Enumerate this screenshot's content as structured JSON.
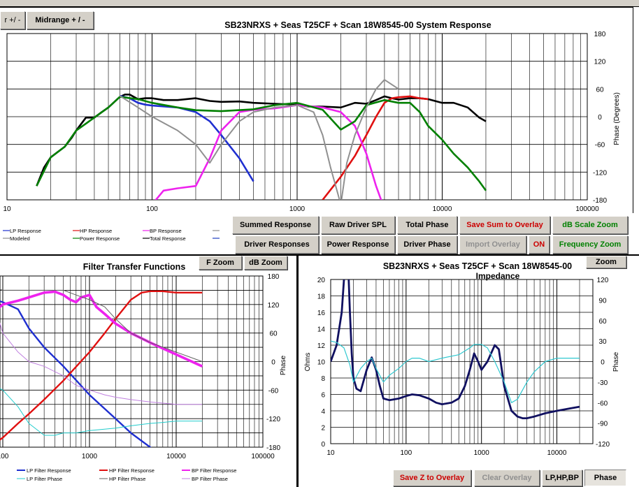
{
  "top_tabs": {
    "woofer_tab": "r +/ -",
    "midrange_tab": "Midrange  + / -"
  },
  "system_chart": {
    "title": "SB23NRXS  + Seas T25CF  + Scan 18W8545-00   System Response",
    "x_ticks": [
      "10",
      "100",
      "1000",
      "10000",
      "100000"
    ],
    "right_ticks": [
      "180",
      "120",
      "60",
      "0",
      "-60",
      "-120",
      "-180"
    ],
    "right_label": "Phase (Degrees)",
    "legend": [
      {
        "label": "LP Response",
        "color": "#1f2fd0"
      },
      {
        "label": "HP Response",
        "color": "#e01010"
      },
      {
        "label": "BP Response",
        "color": "#ee22ee"
      },
      {
        "label": "",
        "color": "#909090"
      },
      {
        "label": "Modeled",
        "color": "#909090"
      },
      {
        "label": "Power Response",
        "color": "#008000"
      },
      {
        "label": "Total Response",
        "color": "#000000"
      },
      {
        "label": "",
        "color": "#2040c0"
      }
    ],
    "chart_data": {
      "type": "line",
      "x_scale": "log",
      "xlim": [
        10,
        100000
      ],
      "right_axis": {
        "label": "Phase (Degrees)",
        "ylim": [
          -180,
          180
        ]
      },
      "series": [
        {
          "name": "Total Response",
          "color": "#000000",
          "x": [
            16,
            18,
            20,
            22,
            25,
            28,
            30,
            35,
            40,
            45,
            50,
            55,
            60,
            65,
            70,
            80,
            90,
            100,
            120,
            150,
            200,
            250,
            300,
            400,
            500,
            700,
            1000,
            1200,
            1500,
            2000,
            2500,
            3000,
            3500,
            4000,
            4500,
            5000,
            6000,
            7000,
            8000,
            10000,
            12000,
            15000,
            18000,
            20000
          ],
          "y": [
            -150,
            -110,
            -88,
            -78,
            -65,
            -45,
            -30,
            -2,
            -2,
            10,
            20,
            32,
            43,
            48,
            48,
            38,
            40,
            40,
            36,
            36,
            40,
            34,
            32,
            33,
            30,
            28,
            26,
            22,
            22,
            20,
            30,
            28,
            36,
            44,
            40,
            37,
            40,
            40,
            38,
            30,
            30,
            20,
            -2,
            -10
          ]
        },
        {
          "name": "LP Response",
          "color": "#1f2fd0",
          "x": [
            60,
            70,
            80,
            90,
            100,
            150,
            200,
            250,
            300,
            400,
            500
          ],
          "y": [
            45,
            40,
            30,
            26,
            24,
            20,
            10,
            -10,
            -40,
            -90,
            -140
          ]
        },
        {
          "name": "HP Response",
          "color": "#e01010",
          "x": [
            1500,
            2000,
            2500,
            3000,
            3500,
            4000,
            4500,
            5000,
            6000,
            7000,
            8000
          ],
          "y": [
            -180,
            -130,
            -85,
            -40,
            0,
            30,
            40,
            42,
            44,
            40,
            38
          ]
        },
        {
          "name": "BP Response",
          "color": "#ee22ee",
          "x": [
            100,
            120,
            150,
            200,
            250,
            300,
            400,
            500,
            700,
            1000,
            1500,
            2000,
            2500,
            3000,
            3500,
            4000
          ],
          "y": [
            -190,
            -160,
            -155,
            -150,
            -90,
            -30,
            10,
            15,
            18,
            25,
            20,
            10,
            -20,
            -80,
            -150,
            -200
          ]
        },
        {
          "name": "Power Response",
          "color": "#008000",
          "x": [
            16,
            20,
            25,
            30,
            40,
            50,
            60,
            80,
            100,
            150,
            200,
            300,
            500,
            700,
            1000,
            1500,
            2000,
            2500,
            3000,
            4000,
            5000,
            6000,
            7000,
            8000,
            10000,
            12000,
            15000,
            18000,
            20000
          ],
          "y": [
            -150,
            -88,
            -65,
            -30,
            -2,
            20,
            43,
            38,
            30,
            20,
            14,
            12,
            16,
            25,
            30,
            15,
            -28,
            -10,
            25,
            36,
            30,
            30,
            10,
            -20,
            -50,
            -80,
            -110,
            -140,
            -160
          ]
        },
        {
          "name": "Modeled",
          "color": "#909090",
          "x": [
            60,
            80,
            100,
            150,
            200,
            250,
            300,
            400,
            500,
            700,
            1000,
            1300,
            1500,
            1700,
            2000,
            2200,
            2500,
            3000,
            3500,
            4000,
            5000
          ],
          "y": [
            45,
            20,
            0,
            -30,
            -60,
            -100,
            -60,
            -10,
            10,
            20,
            25,
            10,
            -40,
            -110,
            -190,
            -100,
            -40,
            20,
            60,
            80,
            60
          ]
        }
      ]
    }
  },
  "buttons_row1": {
    "summed_response": "Summed Response",
    "raw_driver_spl": "Raw Driver SPL",
    "total_phase": "Total Phase",
    "save_sum_overlay": "Save Sum to Overlay",
    "db_scale_zoom": "dB Scale Zoom"
  },
  "buttons_row2": {
    "driver_responses": "Driver Responses",
    "power_response": "Power Response",
    "driver_phase": "Driver Phase",
    "import_overlay": "Import Overlay",
    "on_toggle": "ON",
    "frequency_zoom": "Frequency Zoom"
  },
  "filter_chart": {
    "title": "Filter Transfer  Functions",
    "f_zoom": "F Zoom",
    "db_zoom": "dB Zoom",
    "x_ticks": [
      "100",
      "1000",
      "10000",
      "100000"
    ],
    "right_ticks": [
      "180",
      "120",
      "60",
      "0",
      "-60",
      "-120",
      "-180"
    ],
    "right_label": "Phase",
    "legend": [
      {
        "label": "LP Filter Response",
        "color": "#1f2fd0"
      },
      {
        "label": "HP Filter Response",
        "color": "#e01010"
      },
      {
        "label": "BP Filter Response",
        "color": "#ee22ee"
      },
      {
        "label": "LP Filter Phase",
        "color": "#22cccc"
      },
      {
        "label": "HP Filter Phase",
        "color": "#606060"
      },
      {
        "label": "BP Filter Phase",
        "color": "#c080e0"
      }
    ],
    "chart_data": {
      "type": "line",
      "x_scale": "log",
      "xlim": [
        20,
        100000
      ],
      "right_axis": {
        "label": "Phase",
        "ylim": [
          -180,
          180
        ]
      },
      "series": [
        {
          "name": "LP Filter Response",
          "color": "#1f2fd0",
          "x": [
            20,
            30,
            40,
            50,
            60,
            80,
            100,
            150,
            200,
            300,
            500,
            1000,
            2000,
            3000,
            5000,
            6000
          ],
          "y": [
            145,
            145,
            140,
            148,
            146,
            130,
            125,
            110,
            70,
            30,
            -10,
            -70,
            -120,
            -150,
            -180,
            -190
          ]
        },
        {
          "name": "HP Filter Response",
          "color": "#e01010",
          "x": [
            70,
            100,
            150,
            200,
            300,
            500,
            1000,
            1500,
            2000,
            3000,
            4000,
            5000,
            7000,
            10000,
            20000
          ],
          "y": [
            -180,
            -160,
            -130,
            -110,
            -80,
            -40,
            20,
            60,
            90,
            130,
            145,
            148,
            148,
            145,
            145
          ]
        },
        {
          "name": "BP Filter Response",
          "color": "#ee22ee",
          "x": [
            20,
            30,
            40,
            50,
            60,
            70,
            80,
            100,
            150,
            200,
            300,
            400,
            500,
            600,
            700,
            800,
            1000,
            1200,
            1500,
            2000,
            3000,
            5000,
            10000,
            20000
          ],
          "y": [
            -50,
            -20,
            10,
            40,
            70,
            90,
            105,
            120,
            128,
            135,
            145,
            147,
            140,
            130,
            125,
            135,
            140,
            115,
            100,
            80,
            60,
            40,
            15,
            -10
          ]
        },
        {
          "name": "LP Filter Phase",
          "color": "#22cccc",
          "x": [
            20,
            30,
            50,
            80,
            100,
            150,
            200,
            300,
            400,
            500,
            700,
            1000,
            2000,
            3000,
            5000,
            7000,
            10000,
            20000
          ],
          "y": [
            0,
            0,
            -20,
            -50,
            -60,
            -95,
            -130,
            -155,
            -155,
            -150,
            -150,
            -145,
            -140,
            -135,
            -130,
            -128,
            -125,
            -125
          ]
        },
        {
          "name": "HP Filter Phase",
          "color": "#606060",
          "x": [
            20,
            30,
            50,
            80,
            100,
            200,
            300,
            500,
            700,
            1000,
            1500,
            2000,
            3000,
            5000,
            10000,
            20000
          ],
          "y": [
            150,
            155,
            162,
            155,
            150,
            150,
            150,
            150,
            140,
            130,
            115,
            90,
            60,
            40,
            20,
            0
          ]
        },
        {
          "name": "BP Filter Phase",
          "color": "#c080e0",
          "x": [
            80,
            100,
            150,
            200,
            300,
            500,
            700,
            1000,
            1500,
            2000,
            3000,
            5000,
            10000,
            20000
          ],
          "y": [
            120,
            60,
            20,
            0,
            -10,
            -30,
            -50,
            -60,
            -70,
            -75,
            -80,
            -85,
            -90,
            -90
          ]
        }
      ]
    }
  },
  "impedance_chart": {
    "title": "SB23NRXS  + Seas T25CF  + Scan 18W8545-00",
    "subtitle": "Impedance",
    "zoom_label": "Zoom",
    "left_label": "Ohms",
    "right_label": "Phase",
    "left_ticks": [
      "20",
      "18",
      "16",
      "14",
      "12",
      "10",
      "8",
      "6",
      "4",
      "2",
      "0"
    ],
    "right_ticks": [
      "120",
      "90",
      "60",
      "30",
      "0",
      "-30",
      "-60",
      "-90",
      "-120"
    ],
    "x_ticks": [
      "10",
      "100",
      "1000",
      "10000"
    ],
    "chart_data": {
      "type": "line",
      "x_scale": "log",
      "xlim": [
        10,
        30000
      ],
      "ylim": [
        0,
        20
      ],
      "right_axis": {
        "label": "Phase",
        "ylim": [
          -120,
          120
        ]
      },
      "series": [
        {
          "name": "Impedance",
          "color": "#101060",
          "x": [
            10,
            12,
            14,
            15,
            16,
            17,
            18,
            19,
            20,
            22,
            25,
            28,
            30,
            35,
            40,
            45,
            50,
            60,
            80,
            100,
            120,
            150,
            200,
            250,
            300,
            400,
            500,
            600,
            700,
            800,
            900,
            1000,
            1200,
            1500,
            1700,
            2000,
            2500,
            3000,
            3500,
            4000,
            5000,
            7000,
            10000,
            15000,
            20000
          ],
          "y": [
            10,
            12,
            16,
            20,
            23,
            22,
            16,
            11,
            8,
            6.7,
            6.4,
            8,
            9,
            10.5,
            9,
            7,
            5.5,
            5.3,
            5.5,
            5.8,
            6,
            5.9,
            5.5,
            5,
            4.8,
            5,
            5.5,
            7,
            9,
            11,
            10,
            9,
            10,
            12,
            11.5,
            7,
            4,
            3.3,
            3.1,
            3.1,
            3.3,
            3.7,
            4,
            4.3,
            4.5
          ]
        },
        {
          "name": "Impedance Phase",
          "color": "#30c8d0",
          "x": [
            10,
            12,
            15,
            18,
            20,
            25,
            30,
            35,
            40,
            50,
            60,
            80,
            100,
            120,
            150,
            200,
            300,
            500,
            700,
            800,
            1000,
            1200,
            1500,
            2000,
            2500,
            3000,
            4000,
            5000,
            7000,
            10000,
            20000
          ],
          "y": [
            30,
            28,
            20,
            -5,
            -30,
            -10,
            0,
            5,
            -10,
            -30,
            -20,
            -10,
            0,
            5,
            5,
            0,
            5,
            10,
            20,
            25,
            25,
            20,
            0,
            -30,
            -60,
            -55,
            -30,
            -15,
            0,
            5,
            5
          ]
        }
      ]
    }
  },
  "bottom_buttons": {
    "save_z_overlay": "Save Z to Overlay",
    "clear_overlay": "Clear Overlay",
    "lp_hp_bp": "LP,HP,BP",
    "phase": "Phase"
  }
}
